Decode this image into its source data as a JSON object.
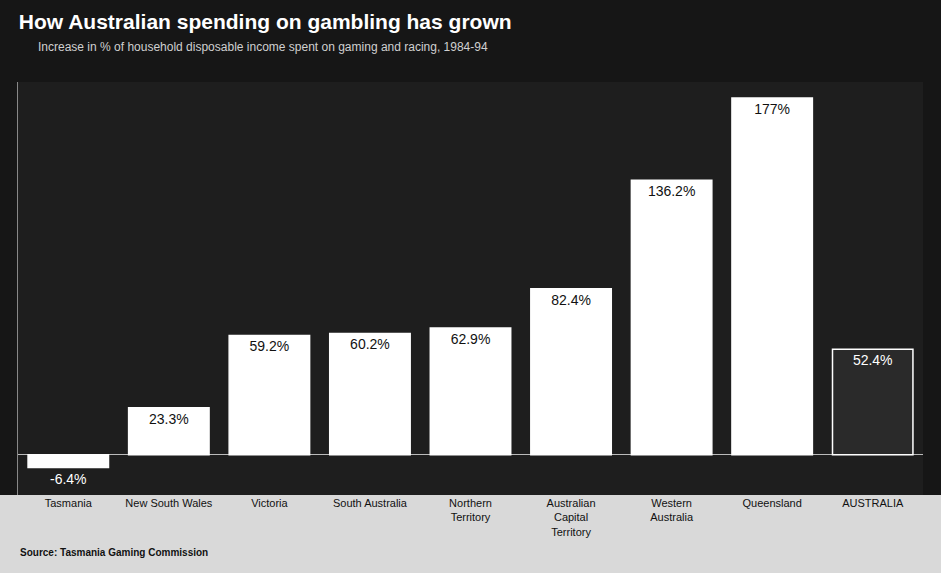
{
  "chart_data": {
    "type": "bar",
    "title": "How Australian spending on gambling has grown",
    "subtitle": "Increase in % of household disposable income spent on gaming and racing, 1984-94",
    "source": "Source: Tasmania Gaming Commission",
    "categories": [
      "Tasmania",
      "New South Wales",
      "Victoria",
      "South Australia",
      "Northern Territory",
      "Australian Capital Territory",
      "Western Australia",
      "Queensland",
      "AUSTRALIA"
    ],
    "values": [
      -6.4,
      23.3,
      59.2,
      60.2,
      62.9,
      82.4,
      136.2,
      177,
      52.4
    ],
    "value_labels": [
      "-6.4%",
      "23.3%",
      "59.2%",
      "60.2%",
      "62.9%",
      "82.4%",
      "136.2%",
      "177%",
      "52.4%"
    ],
    "colors": [
      "#ffffff",
      "#ffffff",
      "#ffffff",
      "#ffffff",
      "#ffffff",
      "#ffffff",
      "#ffffff",
      "#ffffff",
      "#2a2a2a"
    ],
    "ylim": [
      -20,
      185
    ],
    "yticks": [],
    "grid": false,
    "data_labels": true,
    "tick_labels": "x"
  }
}
